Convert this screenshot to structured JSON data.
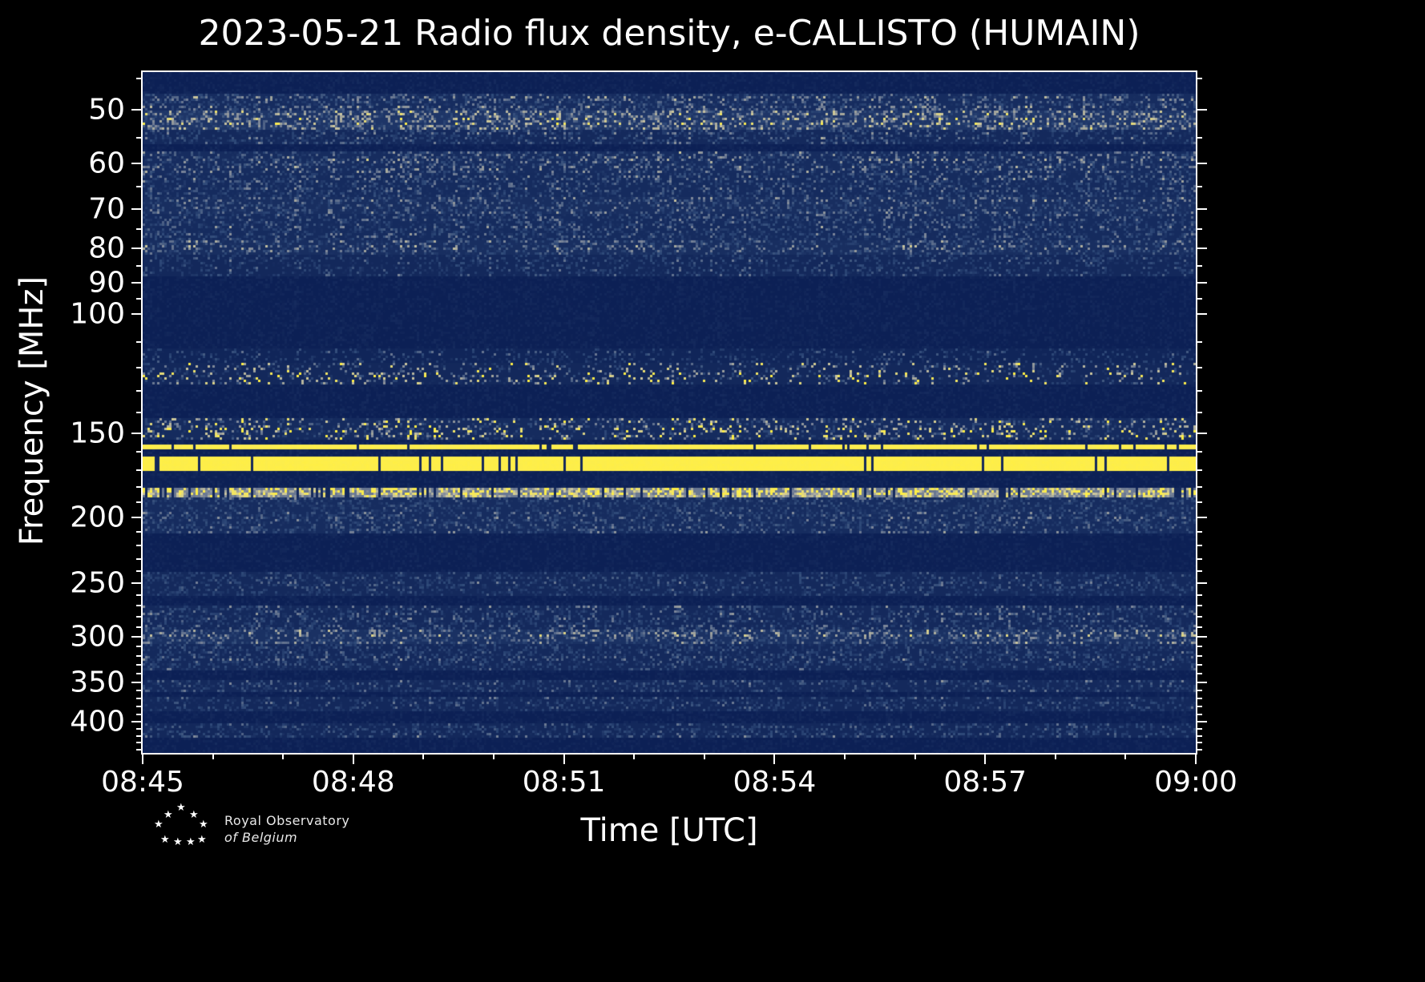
{
  "credit": {
    "line1": "Royal Observatory",
    "line2": "of  Belgium"
  },
  "icons": {
    "star": "★"
  },
  "chart_data": {
    "type": "heatmap",
    "title": "2023-05-21 Radio flux density, e-CALLISTO (HUMAIN)",
    "xlabel": "Time [UTC]",
    "ylabel": "Frequency [MHz]",
    "x_range": [
      "08:45",
      "09:00"
    ],
    "x_total_minutes": 15,
    "x_ticks": [
      {
        "label": "08:45",
        "min": 0
      },
      {
        "label": "08:48",
        "min": 3
      },
      {
        "label": "08:51",
        "min": 6
      },
      {
        "label": "08:54",
        "min": 9
      },
      {
        "label": "08:57",
        "min": 12
      },
      {
        "label": "09:00",
        "min": 15
      }
    ],
    "x_minor_every_min": 1,
    "y_scale": "log",
    "freq_range": [
      44,
      445
    ],
    "y_ticks": [
      50,
      60,
      70,
      80,
      90,
      100,
      150,
      200,
      250,
      300,
      350,
      400
    ],
    "y_minor_ticks": [
      45,
      55,
      65,
      75,
      85,
      95,
      110,
      120,
      130,
      140,
      160,
      170,
      180,
      190,
      210,
      220,
      230,
      240,
      260,
      270,
      280,
      290,
      310,
      320,
      330,
      340,
      360,
      370,
      380,
      390,
      410,
      420,
      430,
      440
    ],
    "legend": "none",
    "grid": false,
    "colormap": [
      [
        0.0,
        "#0a1d52"
      ],
      [
        0.3,
        "#2f4a79"
      ],
      [
        0.5,
        "#7c8699"
      ],
      [
        0.7,
        "#c9c4a0"
      ],
      [
        0.85,
        "#f2e566"
      ],
      [
        1.0,
        "#ffef45"
      ]
    ],
    "background": {
      "base": 0.02,
      "amp": 0.06,
      "prob": 0.5
    },
    "features": [
      "Broadband noise/RFI bands ~48-88 MHz",
      "Quiet dark band ~88-113 MHz",
      "Intermittent bright RFI specks ~118-127 MHz",
      "Speckled noise band ~143-154 MHz with bright patches 08:48-08:53",
      "Strong continuous RFI line ~156 MHz",
      "Strong thick RFI band ~163-171 MHz with short dark dropouts",
      "Intermittent dotted bright line ~180-186 MHz",
      "Noise bands ~187-211, 240-261, 270-337 (brighter near 300), 347-385, 402-424 MHz"
    ],
    "bands": [
      {
        "f1": 47.5,
        "f2": 50,
        "base": 0.1,
        "amp": 0.45,
        "prob": 0.55
      },
      {
        "f1": 50,
        "f2": 53.5,
        "base": 0.16,
        "amp": 0.6,
        "prob": 0.6
      },
      {
        "f1": 53.5,
        "f2": 56,
        "base": 0.08,
        "amp": 0.35,
        "prob": 0.45
      },
      {
        "f1": 57.5,
        "f2": 62,
        "base": 0.1,
        "amp": 0.45,
        "prob": 0.5
      },
      {
        "f1": 62,
        "f2": 67.5,
        "base": 0.09,
        "amp": 0.38,
        "prob": 0.5
      },
      {
        "f1": 67.5,
        "f2": 71.5,
        "base": 0.11,
        "amp": 0.45,
        "prob": 0.5
      },
      {
        "f1": 71.5,
        "f2": 78,
        "base": 0.09,
        "amp": 0.36,
        "prob": 0.48
      },
      {
        "f1": 78,
        "f2": 82,
        "base": 0.11,
        "amp": 0.42,
        "prob": 0.5
      },
      {
        "f1": 82,
        "f2": 88,
        "base": 0.07,
        "amp": 0.3,
        "prob": 0.4
      },
      {
        "f1": 113,
        "f2": 118,
        "base": 0.05,
        "amp": 0.3,
        "prob": 0.3
      },
      {
        "f1": 118,
        "f2": 127,
        "base": 0.07,
        "amp": 1.0,
        "prob": 0.35,
        "pow": 3
      },
      {
        "f1": 143,
        "f2": 154,
        "base": 0.09,
        "amp": 0.85,
        "prob": 0.45,
        "pow": 2.5
      },
      {
        "f1": 155.5,
        "f2": 158.5,
        "base": 0.93,
        "amp": 0.07,
        "prob": 1.0,
        "gap": 0.05
      },
      {
        "f1": 163,
        "f2": 171,
        "base": 0.97,
        "amp": 0.03,
        "prob": 1.0,
        "gap": 0.05
      },
      {
        "f1": 180,
        "f2": 186,
        "base": 0.45,
        "amp": 0.55,
        "prob": 0.75,
        "gap": 0.12,
        "pow": 1.2
      },
      {
        "f1": 187,
        "f2": 211,
        "base": 0.1,
        "amp": 0.35,
        "prob": 0.5
      },
      {
        "f1": 240,
        "f2": 261,
        "base": 0.08,
        "amp": 0.32,
        "prob": 0.45
      },
      {
        "f1": 270,
        "f2": 292,
        "base": 0.08,
        "amp": 0.33,
        "prob": 0.5
      },
      {
        "f1": 292,
        "f2": 307,
        "base": 0.13,
        "amp": 0.45,
        "prob": 0.55
      },
      {
        "f1": 307,
        "f2": 337,
        "base": 0.08,
        "amp": 0.33,
        "prob": 0.5
      },
      {
        "f1": 347,
        "f2": 361,
        "base": 0.08,
        "amp": 0.32,
        "prob": 0.45
      },
      {
        "f1": 368,
        "f2": 385,
        "base": 0.07,
        "amp": 0.3,
        "prob": 0.45
      },
      {
        "f1": 402,
        "f2": 424,
        "base": 0.07,
        "amp": 0.32,
        "prob": 0.45
      }
    ]
  }
}
